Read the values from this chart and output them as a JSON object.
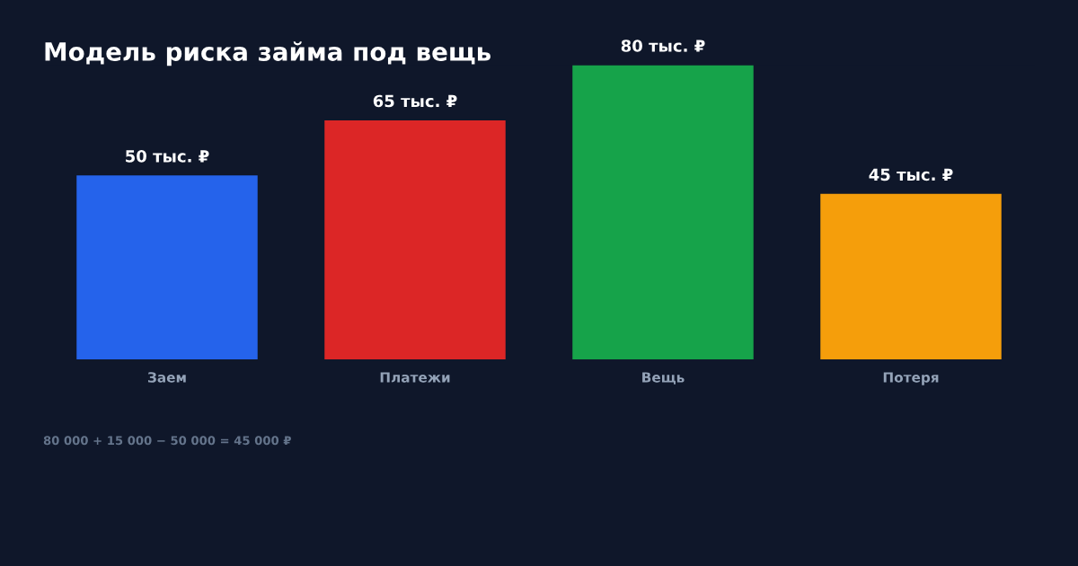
{
  "chart_data": {
    "type": "bar",
    "title": "Модель риска займа под вещь",
    "categories": [
      "Заем",
      "Платежи",
      "Вещь",
      "Потеря"
    ],
    "values": [
      50,
      65,
      80,
      45
    ],
    "colors": [
      "#2563eb",
      "#dc2626",
      "#16a34a",
      "#f59e0b"
    ],
    "value_labels": [
      "50 тыс. ₽",
      "65 тыс. ₽",
      "80 тыс. ₽",
      "45 тыс. ₽"
    ],
    "annotations": [
      "80 000 + 15 000 − 50 000 = 45 000 ₽"
    ],
    "grid": false,
    "legend": false
  }
}
